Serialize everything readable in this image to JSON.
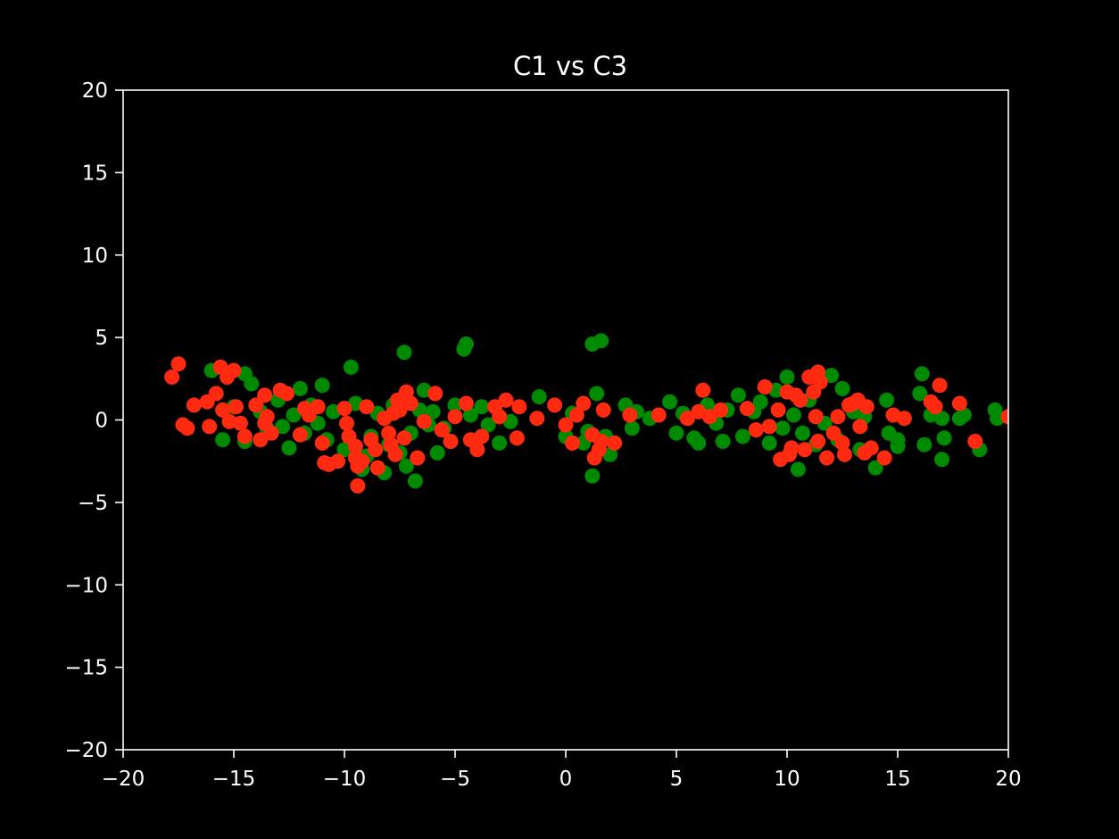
{
  "chart_data": {
    "type": "scatter",
    "title": "C1 vs C3",
    "xlabel": "",
    "ylabel": "",
    "xlim": [
      -20,
      20
    ],
    "ylim": [
      -20,
      20
    ],
    "x_ticks": [
      -20,
      -15,
      -10,
      -5,
      0,
      5,
      10,
      15,
      20
    ],
    "y_ticks": [
      -20,
      -15,
      -10,
      -5,
      0,
      5,
      10,
      15,
      20
    ],
    "grid": false,
    "legend": "none",
    "colors": {
      "background": "#000000",
      "axes": "#ffffff",
      "text": "#ffffff"
    },
    "series": [
      {
        "color": "#008a00",
        "points": [
          [
            -16,
            3
          ],
          [
            -15.5,
            -1.2
          ],
          [
            -15,
            0.8
          ],
          [
            -14.5,
            2.8
          ],
          [
            -14.5,
            -1.3
          ],
          [
            -14.2,
            2.2
          ],
          [
            -13.8,
            0.5
          ],
          [
            -13.5,
            -0.5
          ],
          [
            -13,
            1.2
          ],
          [
            -12.8,
            -0.4
          ],
          [
            -12.5,
            -1.7
          ],
          [
            -12.3,
            0.3
          ],
          [
            -12,
            1.9
          ],
          [
            -11.8,
            -0.8
          ],
          [
            -11.5,
            0.9
          ],
          [
            -11.2,
            -0.2
          ],
          [
            -11,
            2.1
          ],
          [
            -10.8,
            -1.2
          ],
          [
            -10.5,
            0.5
          ],
          [
            -10,
            -1.8
          ],
          [
            -9.7,
            3.2
          ],
          [
            -9.5,
            1.0
          ],
          [
            -9.2,
            -3.0
          ],
          [
            -9,
            -2.2
          ],
          [
            -8.8,
            -1.0
          ],
          [
            -8.5,
            0.4
          ],
          [
            -8.2,
            -3.2
          ],
          [
            -8,
            -1.5
          ],
          [
            -7.8,
            0.9
          ],
          [
            -7.5,
            -2.0
          ],
          [
            -7.3,
            4.1
          ],
          [
            -7.2,
            -2.8
          ],
          [
            -7,
            -0.8
          ],
          [
            -6.8,
            -3.7
          ],
          [
            -6.6,
            0.6
          ],
          [
            -6.4,
            1.8
          ],
          [
            -6.2,
            -0.3
          ],
          [
            -6,
            0.5
          ],
          [
            -5.8,
            -2.0
          ],
          [
            -5.5,
            -0.5
          ],
          [
            -5.2,
            -1.3
          ],
          [
            -5,
            0.9
          ],
          [
            -4.6,
            4.3
          ],
          [
            -4.5,
            4.6
          ],
          [
            -4.3,
            0.3
          ],
          [
            -4,
            -1.2
          ],
          [
            -3.8,
            0.8
          ],
          [
            -3.5,
            -0.3
          ],
          [
            -3,
            -1.4
          ],
          [
            -2.5,
            -0.1
          ],
          [
            -1.2,
            1.4
          ],
          [
            0,
            -1.0
          ],
          [
            0.3,
            0.4
          ],
          [
            0.8,
            -1.4
          ],
          [
            1,
            -0.7
          ],
          [
            1.2,
            4.6
          ],
          [
            1.2,
            -3.4
          ],
          [
            1.4,
            1.6
          ],
          [
            1.6,
            4.8
          ],
          [
            1.8,
            -1.0
          ],
          [
            2,
            -2.1
          ],
          [
            2.7,
            0.9
          ],
          [
            3,
            -0.5
          ],
          [
            3.2,
            0.5
          ],
          [
            3.8,
            0.1
          ],
          [
            4.7,
            1.1
          ],
          [
            5,
            -0.8
          ],
          [
            5.3,
            0.4
          ],
          [
            5.8,
            -1.1
          ],
          [
            6,
            -1.4
          ],
          [
            6.4,
            0.9
          ],
          [
            6.8,
            -0.2
          ],
          [
            7.1,
            -1.3
          ],
          [
            7.3,
            0.6
          ],
          [
            7.8,
            1.5
          ],
          [
            8,
            -1.0
          ],
          [
            8.5,
            0.5
          ],
          [
            8.8,
            1.1
          ],
          [
            9.2,
            -1.4
          ],
          [
            9.5,
            1.8
          ],
          [
            9.8,
            -0.5
          ],
          [
            10,
            2.6
          ],
          [
            10.3,
            0.3
          ],
          [
            10.5,
            -3.0
          ],
          [
            10.7,
            -0.8
          ],
          [
            11,
            1.2
          ],
          [
            11.3,
            -1.5
          ],
          [
            11.7,
            -0.2
          ],
          [
            12,
            2.7
          ],
          [
            12.3,
            -1.2
          ],
          [
            12.5,
            1.9
          ],
          [
            13,
            0.5
          ],
          [
            13.3,
            -1.8
          ],
          [
            13.5,
            0.2
          ],
          [
            14,
            -2.9
          ],
          [
            14.5,
            1.2
          ],
          [
            14.6,
            -0.8
          ],
          [
            15,
            -1.2
          ],
          [
            15,
            -1.6
          ],
          [
            16,
            1.6
          ],
          [
            16.1,
            2.8
          ],
          [
            16.2,
            -1.5
          ],
          [
            16.5,
            0.3
          ],
          [
            17,
            -2.4
          ],
          [
            17,
            0.1
          ],
          [
            17.1,
            -1.1
          ],
          [
            17.8,
            0.1
          ],
          [
            18,
            0.3
          ],
          [
            18.7,
            -1.8
          ],
          [
            19.4,
            0.6
          ],
          [
            19.5,
            0.1
          ]
        ]
      },
      {
        "color": "#ff2a10",
        "points": [
          [
            -17.8,
            2.6
          ],
          [
            -17.5,
            3.4
          ],
          [
            -17.3,
            -0.3
          ],
          [
            -17.1,
            -0.5
          ],
          [
            -16.8,
            0.9
          ],
          [
            -16.2,
            1.1
          ],
          [
            -16.1,
            -0.4
          ],
          [
            -15.8,
            1.6
          ],
          [
            -15.6,
            3.2
          ],
          [
            -15.5,
            0.6
          ],
          [
            -15.3,
            2.6
          ],
          [
            -15.2,
            -0.1
          ],
          [
            -15,
            3.0
          ],
          [
            -14.9,
            0.8
          ],
          [
            -14.7,
            -0.2
          ],
          [
            -14.5,
            -1.0
          ],
          [
            -14,
            0.9
          ],
          [
            -13.8,
            -1.2
          ],
          [
            -13.6,
            1.5
          ],
          [
            -13.5,
            0.2
          ],
          [
            -13.3,
            -0.8
          ],
          [
            -12.9,
            1.8
          ],
          [
            -12.6,
            1.6
          ],
          [
            -12,
            -0.9
          ],
          [
            -11.8,
            0.7
          ],
          [
            -11.6,
            0.3
          ],
          [
            -11.2,
            0.8
          ],
          [
            -11,
            -1.4
          ],
          [
            -10.9,
            -2.6
          ],
          [
            -10.7,
            -2.7
          ],
          [
            -10.3,
            -2.5
          ],
          [
            -10,
            0.7
          ],
          [
            -9.9,
            -0.2
          ],
          [
            -9.8,
            -1.0
          ],
          [
            -9.5,
            -1.6
          ],
          [
            -9.5,
            -2.3
          ],
          [
            -9.4,
            -2.8
          ],
          [
            -9.4,
            -4.0
          ],
          [
            -9.2,
            -2.5
          ],
          [
            -9,
            0.8
          ],
          [
            -8.8,
            -1.2
          ],
          [
            -8.6,
            -1.8
          ],
          [
            -8.5,
            -2.9
          ],
          [
            -8.2,
            0.1
          ],
          [
            -8,
            -0.8
          ],
          [
            -7.9,
            -1.5
          ],
          [
            -7.8,
            0.4
          ],
          [
            -7.7,
            -2.1
          ],
          [
            -7.6,
            1.2
          ],
          [
            -7.5,
            0.6
          ],
          [
            -7.3,
            -1.1
          ],
          [
            -7.2,
            1.7
          ],
          [
            -7,
            1.0
          ],
          [
            -6.7,
            -2.3
          ],
          [
            -6.4,
            -0.1
          ],
          [
            -5.9,
            1.6
          ],
          [
            -5.6,
            -0.6
          ],
          [
            -5.2,
            -1.3
          ],
          [
            -5,
            0.2
          ],
          [
            -4.5,
            1.0
          ],
          [
            -4.3,
            -1.2
          ],
          [
            -4,
            -1.8
          ],
          [
            -3.8,
            -1.0
          ],
          [
            -3.2,
            0.8
          ],
          [
            -3,
            0.2
          ],
          [
            -2.7,
            1.2
          ],
          [
            -2.2,
            -1.1
          ],
          [
            -2.1,
            0.8
          ],
          [
            -1.3,
            0.1
          ],
          [
            -0.5,
            0.9
          ],
          [
            0,
            -0.3
          ],
          [
            0.5,
            0.3
          ],
          [
            0.3,
            -1.4
          ],
          [
            0.8,
            1.0
          ],
          [
            1.2,
            -0.9
          ],
          [
            1.3,
            -2.3
          ],
          [
            1.5,
            -1.8
          ],
          [
            1.6,
            -1.3
          ],
          [
            1.7,
            0.6
          ],
          [
            2.2,
            -1.4
          ],
          [
            2.9,
            0.3
          ],
          [
            4.2,
            0.3
          ],
          [
            5.5,
            0.1
          ],
          [
            6,
            0.5
          ],
          [
            6.2,
            1.8
          ],
          [
            6.5,
            0.2
          ],
          [
            7,
            0.6
          ],
          [
            8.2,
            0.7
          ],
          [
            8.6,
            -0.6
          ],
          [
            9,
            2.0
          ],
          [
            9.2,
            -0.4
          ],
          [
            9.6,
            0.6
          ],
          [
            9.7,
            -2.4
          ],
          [
            10,
            1.7
          ],
          [
            10.1,
            -2.1
          ],
          [
            10.2,
            -1.7
          ],
          [
            10.4,
            1.5
          ],
          [
            10.6,
            1.2
          ],
          [
            10.8,
            -1.8
          ],
          [
            11,
            2.6
          ],
          [
            11.2,
            1.7
          ],
          [
            11.3,
            0.2
          ],
          [
            11.4,
            2.9
          ],
          [
            11.5,
            2.3
          ],
          [
            11.4,
            -1.3
          ],
          [
            11.8,
            -2.3
          ],
          [
            12.1,
            -0.8
          ],
          [
            12.3,
            0.2
          ],
          [
            12.5,
            -1.4
          ],
          [
            12.6,
            -2.1
          ],
          [
            12.8,
            0.9
          ],
          [
            13,
            1.0
          ],
          [
            13.2,
            1.2
          ],
          [
            13.3,
            -0.4
          ],
          [
            13.5,
            -2.0
          ],
          [
            13.6,
            0.8
          ],
          [
            13.8,
            -1.7
          ],
          [
            14.4,
            -2.3
          ],
          [
            14.8,
            0.3
          ],
          [
            15.3,
            0.1
          ],
          [
            16.5,
            1.1
          ],
          [
            16.7,
            0.8
          ],
          [
            16.9,
            2.1
          ],
          [
            17.8,
            1.0
          ],
          [
            18.5,
            -1.3
          ],
          [
            20,
            0.2
          ],
          [
            -13.6,
            -0.2
          ]
        ]
      }
    ]
  }
}
